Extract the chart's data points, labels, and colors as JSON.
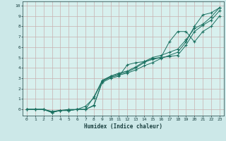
{
  "xlabel": "Humidex (Indice chaleur)",
  "bg_color": "#cce8e8",
  "plot_bg_color": "#d8f0ee",
  "grid_color": "#c8b0b0",
  "line_color": "#1a7060",
  "xlim": [
    -0.5,
    23.5
  ],
  "ylim": [
    -0.6,
    10.4
  ],
  "xticks": [
    0,
    1,
    2,
    3,
    4,
    5,
    6,
    7,
    8,
    9,
    10,
    11,
    12,
    13,
    14,
    15,
    16,
    17,
    18,
    19,
    20,
    21,
    22,
    23
  ],
  "yticks": [
    0,
    1,
    2,
    3,
    4,
    5,
    6,
    7,
    8,
    9,
    10
  ],
  "line1_x": [
    0,
    1,
    2,
    3,
    4,
    5,
    6,
    7,
    8,
    9,
    10,
    11,
    12,
    13,
    14,
    15,
    16,
    17,
    18,
    19,
    20,
    21,
    22,
    23
  ],
  "line1_y": [
    -0.0,
    -0.0,
    -0.0,
    -0.3,
    -0.1,
    -0.1,
    -0.0,
    -0.0,
    0.35,
    2.7,
    3.1,
    3.3,
    3.5,
    3.8,
    4.2,
    4.5,
    4.9,
    5.2,
    5.5,
    6.5,
    8.0,
    9.1,
    9.3,
    9.8
  ],
  "line2_x": [
    0,
    1,
    2,
    3,
    4,
    5,
    6,
    7,
    8,
    9,
    10,
    11,
    12,
    13,
    14,
    15,
    16,
    17,
    18,
    19,
    20,
    21,
    22,
    23
  ],
  "line2_y": [
    -0.0,
    -0.0,
    -0.0,
    -0.2,
    -0.1,
    -0.0,
    -0.0,
    -0.0,
    1.2,
    2.8,
    3.2,
    3.4,
    3.6,
    4.0,
    4.5,
    4.9,
    5.0,
    5.1,
    5.2,
    6.2,
    7.5,
    8.1,
    8.6,
    9.5
  ],
  "line3_x": [
    0,
    1,
    2,
    3,
    4,
    5,
    6,
    7,
    8,
    9,
    10,
    11,
    12,
    13,
    14,
    15,
    16,
    17,
    18,
    19,
    20,
    21,
    22,
    23
  ],
  "line3_y": [
    -0.0,
    -0.0,
    -0.0,
    -0.2,
    -0.1,
    -0.1,
    -0.0,
    0.3,
    1.1,
    2.7,
    3.2,
    3.5,
    3.7,
    4.1,
    4.6,
    5.0,
    5.2,
    5.5,
    5.8,
    6.7,
    7.8,
    8.2,
    8.9,
    9.8
  ],
  "line4_x": [
    0,
    1,
    2,
    3,
    4,
    5,
    6,
    7,
    8,
    9,
    10,
    11,
    12,
    13,
    14,
    15,
    16,
    17,
    18,
    19,
    20,
    21,
    22,
    23
  ],
  "line4_y": [
    -0.0,
    -0.0,
    -0.0,
    -0.3,
    -0.1,
    -0.1,
    -0.0,
    -0.0,
    0.4,
    2.6,
    3.0,
    3.2,
    4.3,
    4.5,
    4.6,
    4.8,
    5.0,
    6.5,
    7.5,
    7.5,
    6.5,
    7.5,
    8.0,
    9.0
  ]
}
